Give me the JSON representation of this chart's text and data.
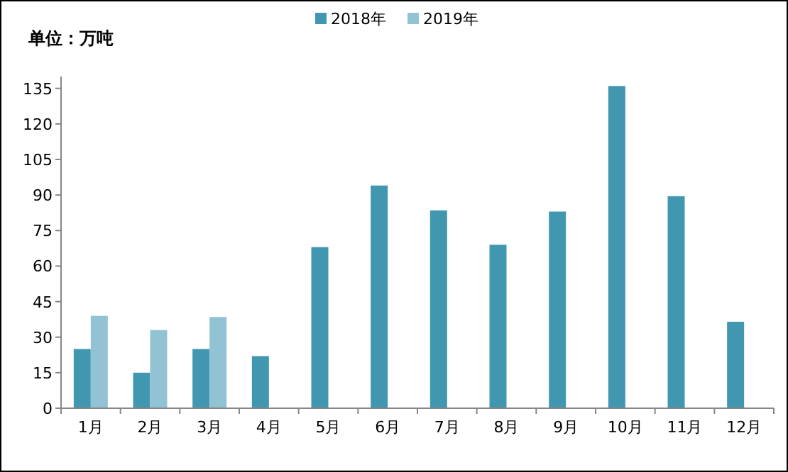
{
  "chart_data": {
    "type": "bar",
    "ylabel": "单位：万吨",
    "categories": [
      "1月",
      "2月",
      "3月",
      "4月",
      "5月",
      "6月",
      "7月",
      "8月",
      "9月",
      "10月",
      "11月",
      "12月"
    ],
    "series": [
      {
        "name": "2018年",
        "color": "#4297b0",
        "values": [
          25,
          15,
          25,
          22,
          68,
          94,
          83.5,
          69,
          83,
          136,
          89.5,
          36.5
        ]
      },
      {
        "name": "2019年",
        "color": "#92c3d5",
        "values": [
          39,
          33,
          38.5,
          null,
          null,
          null,
          null,
          null,
          null,
          null,
          null,
          null
        ]
      }
    ],
    "ylim": [
      0,
      140
    ],
    "yticks": [
      0,
      15,
      30,
      45,
      60,
      75,
      90,
      105,
      120,
      135
    ],
    "grid": false,
    "legend": "top"
  }
}
